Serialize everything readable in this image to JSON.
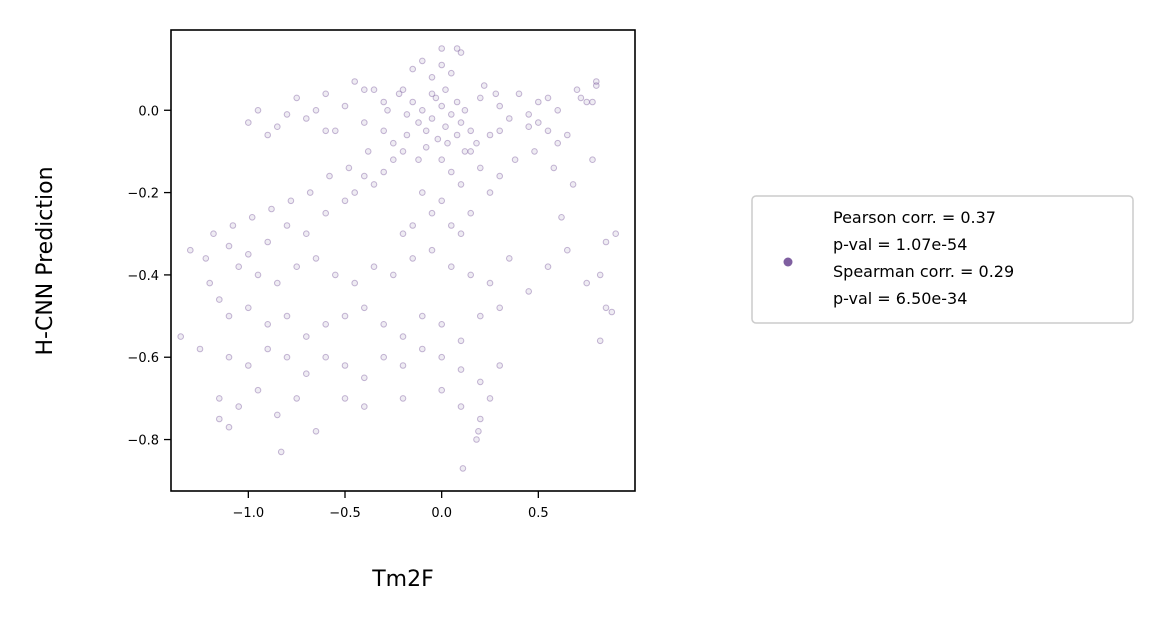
{
  "chart_data": {
    "type": "scatter",
    "title": "",
    "xlabel": "Tm2F",
    "ylabel": "H-CNN Prediction",
    "xlim": [
      -1.4,
      1.0
    ],
    "ylim": [
      -0.925,
      0.195
    ],
    "x_ticks": [
      -1.0,
      -0.5,
      0.0,
      0.5
    ],
    "x_tick_labels": [
      "−1.0",
      "−0.5",
      "0.0",
      "0.5"
    ],
    "y_ticks": [
      0.0,
      -0.2,
      -0.4,
      -0.6,
      -0.8
    ],
    "y_tick_labels": [
      "0.0",
      "−0.2",
      "−0.4",
      "−0.6",
      "−0.8"
    ],
    "grid": false,
    "legend_position": "right, outside plot",
    "marker_color": "#7f5fa0",
    "legend": {
      "lines": [
        "Pearson corr. = 0.37",
        "p-val = 1.07e-54",
        "Spearman corr. = 0.29",
        "p-val = 6.50e-34"
      ]
    },
    "series": [
      {
        "points": [
          [
            -0.1,
            0.0
          ],
          [
            -0.05,
            -0.02
          ],
          [
            0.0,
            0.01
          ],
          [
            0.05,
            -0.01
          ],
          [
            -0.12,
            -0.03
          ],
          [
            0.08,
            0.02
          ],
          [
            -0.08,
            -0.05
          ],
          [
            0.02,
            -0.04
          ],
          [
            -0.15,
            0.02
          ],
          [
            0.1,
            -0.03
          ],
          [
            -0.03,
            0.03
          ],
          [
            0.12,
            0.0
          ],
          [
            -0.18,
            -0.01
          ],
          [
            0.15,
            -0.05
          ],
          [
            -0.2,
            0.05
          ],
          [
            0.2,
            0.03
          ],
          [
            -0.25,
            -0.08
          ],
          [
            0.25,
            -0.06
          ],
          [
            -0.3,
            0.02
          ],
          [
            0.3,
            0.01
          ],
          [
            -0.35,
            0.05
          ],
          [
            0.35,
            -0.02
          ],
          [
            -0.4,
            -0.03
          ],
          [
            0.4,
            0.04
          ],
          [
            -0.45,
            0.07
          ],
          [
            0.45,
            -0.04
          ],
          [
            -0.5,
            0.01
          ],
          [
            0.5,
            0.02
          ],
          [
            -0.55,
            -0.05
          ],
          [
            0.55,
            0.03
          ],
          [
            -0.6,
            0.04
          ],
          [
            0.6,
            -0.08
          ],
          [
            -0.65,
            0.0
          ],
          [
            0.65,
            -0.06
          ],
          [
            -0.7,
            -0.02
          ],
          [
            0.7,
            0.05
          ],
          [
            -0.75,
            0.03
          ],
          [
            0.75,
            0.02
          ],
          [
            -0.8,
            -0.01
          ],
          [
            0.8,
            0.06
          ],
          [
            -0.85,
            -0.04
          ],
          [
            -0.9,
            -0.06
          ],
          [
            -0.95,
            0.0
          ],
          [
            -1.0,
            -0.03
          ],
          [
            -0.05,
            0.08
          ],
          [
            0.0,
            0.11
          ],
          [
            0.05,
            0.09
          ],
          [
            0.1,
            0.14
          ],
          [
            -0.1,
            0.12
          ],
          [
            -0.15,
            0.1
          ],
          [
            -0.2,
            -0.1
          ],
          [
            -0.25,
            -0.12
          ],
          [
            -0.3,
            -0.15
          ],
          [
            -0.35,
            -0.18
          ],
          [
            -0.4,
            -0.16
          ],
          [
            -0.45,
            -0.2
          ],
          [
            -0.5,
            -0.22
          ],
          [
            0.0,
            -0.12
          ],
          [
            0.05,
            -0.15
          ],
          [
            0.1,
            -0.18
          ],
          [
            0.15,
            -0.1
          ],
          [
            0.2,
            -0.14
          ],
          [
            0.25,
            -0.2
          ],
          [
            0.3,
            -0.16
          ],
          [
            -0.1,
            -0.2
          ],
          [
            -0.05,
            -0.25
          ],
          [
            0.0,
            -0.22
          ],
          [
            -0.15,
            -0.28
          ],
          [
            -0.2,
            -0.3
          ],
          [
            0.05,
            -0.28
          ],
          [
            0.1,
            -0.3
          ],
          [
            0.15,
            -0.25
          ],
          [
            -0.6,
            -0.25
          ],
          [
            -0.7,
            -0.3
          ],
          [
            -0.8,
            -0.28
          ],
          [
            -0.9,
            -0.32
          ],
          [
            -1.0,
            -0.35
          ],
          [
            -1.1,
            -0.33
          ],
          [
            -1.05,
            -0.38
          ],
          [
            -0.95,
            -0.4
          ],
          [
            -0.85,
            -0.42
          ],
          [
            -0.75,
            -0.38
          ],
          [
            -0.65,
            -0.36
          ],
          [
            -0.55,
            -0.4
          ],
          [
            -0.45,
            -0.42
          ],
          [
            -0.35,
            -0.38
          ],
          [
            -0.25,
            -0.4
          ],
          [
            -0.15,
            -0.36
          ],
          [
            -0.05,
            -0.34
          ],
          [
            0.05,
            -0.38
          ],
          [
            0.15,
            -0.4
          ],
          [
            0.25,
            -0.42
          ],
          [
            0.35,
            -0.36
          ],
          [
            0.45,
            -0.44
          ],
          [
            0.55,
            -0.38
          ],
          [
            0.65,
            -0.34
          ],
          [
            0.75,
            -0.42
          ],
          [
            0.85,
            -0.48
          ],
          [
            -1.2,
            -0.42
          ],
          [
            -1.15,
            -0.46
          ],
          [
            -1.1,
            -0.5
          ],
          [
            -1.0,
            -0.48
          ],
          [
            -0.9,
            -0.52
          ],
          [
            -0.8,
            -0.5
          ],
          [
            -0.7,
            -0.55
          ],
          [
            -0.6,
            -0.52
          ],
          [
            -0.5,
            -0.5
          ],
          [
            -0.4,
            -0.48
          ],
          [
            -0.3,
            -0.52
          ],
          [
            -0.2,
            -0.55
          ],
          [
            -0.1,
            -0.5
          ],
          [
            0.0,
            -0.52
          ],
          [
            0.1,
            -0.56
          ],
          [
            0.2,
            -0.5
          ],
          [
            0.3,
            -0.48
          ],
          [
            -1.25,
            -0.58
          ],
          [
            -1.1,
            -0.6
          ],
          [
            -1.0,
            -0.62
          ],
          [
            -0.9,
            -0.58
          ],
          [
            -0.8,
            -0.6
          ],
          [
            -0.7,
            -0.64
          ],
          [
            -0.6,
            -0.6
          ],
          [
            -0.5,
            -0.62
          ],
          [
            -0.4,
            -0.65
          ],
          [
            -0.3,
            -0.6
          ],
          [
            -0.2,
            -0.62
          ],
          [
            -0.1,
            -0.58
          ],
          [
            0.0,
            -0.6
          ],
          [
            0.1,
            -0.63
          ],
          [
            0.2,
            -0.66
          ],
          [
            0.3,
            -0.62
          ],
          [
            -1.15,
            -0.7
          ],
          [
            -1.05,
            -0.72
          ],
          [
            -0.95,
            -0.68
          ],
          [
            -0.85,
            -0.74
          ],
          [
            -0.75,
            -0.7
          ],
          [
            -0.5,
            -0.7
          ],
          [
            -0.4,
            -0.72
          ],
          [
            -0.2,
            -0.7
          ],
          [
            0.0,
            -0.68
          ],
          [
            0.1,
            -0.72
          ],
          [
            0.2,
            -0.75
          ],
          [
            0.25,
            -0.7
          ],
          [
            -1.15,
            -0.75
          ],
          [
            -1.1,
            -0.77
          ],
          [
            -0.83,
            -0.83
          ],
          [
            -0.65,
            -0.78
          ],
          [
            0.18,
            -0.8
          ],
          [
            0.19,
            -0.78
          ],
          [
            0.11,
            -0.87
          ],
          [
            -1.35,
            -0.55
          ],
          [
            -1.3,
            -0.34
          ],
          [
            0.88,
            -0.49
          ],
          [
            0.82,
            -0.56
          ],
          [
            0.85,
            -0.32
          ],
          [
            0.82,
            -0.4
          ],
          [
            0.8,
            0.07
          ],
          [
            0.78,
            0.02
          ],
          [
            0.72,
            0.03
          ],
          [
            0.6,
            0.0
          ],
          [
            0.55,
            -0.05
          ],
          [
            0.5,
            -0.03
          ],
          [
            0.45,
            -0.01
          ],
          [
            -0.6,
            -0.05
          ],
          [
            -0.4,
            0.05
          ],
          [
            0.0,
            0.15
          ],
          [
            0.08,
            0.15
          ],
          [
            -0.3,
            -0.05
          ],
          [
            0.3,
            -0.05
          ],
          [
            -0.02,
            -0.07
          ],
          [
            0.03,
            -0.08
          ],
          [
            -0.08,
            -0.09
          ],
          [
            0.08,
            -0.06
          ],
          [
            -0.12,
            -0.12
          ],
          [
            0.12,
            -0.1
          ],
          [
            -0.18,
            -0.06
          ],
          [
            0.18,
            -0.08
          ],
          [
            -0.05,
            0.04
          ],
          [
            0.02,
            0.05
          ],
          [
            -0.22,
            0.04
          ],
          [
            0.22,
            0.06
          ],
          [
            -0.28,
            0.0
          ],
          [
            0.28,
            0.04
          ],
          [
            -0.38,
            -0.1
          ],
          [
            0.38,
            -0.12
          ],
          [
            -0.48,
            -0.14
          ],
          [
            0.48,
            -0.1
          ],
          [
            -0.58,
            -0.16
          ],
          [
            0.58,
            -0.14
          ],
          [
            -0.68,
            -0.2
          ],
          [
            0.68,
            -0.18
          ],
          [
            -0.78,
            -0.22
          ],
          [
            0.78,
            -0.12
          ],
          [
            -0.88,
            -0.24
          ],
          [
            -0.98,
            -0.26
          ],
          [
            -1.08,
            -0.28
          ],
          [
            -1.18,
            -0.3
          ],
          [
            -1.22,
            -0.36
          ],
          [
            0.9,
            -0.3
          ],
          [
            0.62,
            -0.26
          ]
        ]
      }
    ]
  }
}
